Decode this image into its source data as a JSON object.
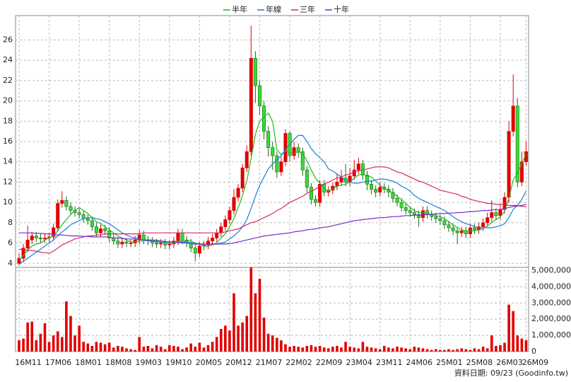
{
  "chart_data": [
    {
      "type": "candlestick",
      "open": [
        4.0,
        4.5,
        5.5,
        6.3,
        6.7,
        6.5,
        6.4,
        6.5,
        6.6,
        7.5,
        9.9,
        10.2,
        9.6,
        9.2,
        9.0,
        8.8,
        8.4,
        8.2,
        7.6,
        7.0,
        7.4,
        7.2,
        6.5,
        6.2,
        5.9,
        6.1,
        6.0,
        6.0,
        6.3,
        6.8,
        6.3,
        6.2,
        6.0,
        5.9,
        6.0,
        5.8,
        5.9,
        6.2,
        7.0,
        6.3,
        6.0,
        5.5,
        5.0,
        5.7,
        5.8,
        6.2,
        6.5,
        7.0,
        7.6,
        8.3,
        9.2,
        10.5,
        11.4,
        13.4,
        15.0,
        24.2,
        21.5,
        19.5,
        17.0,
        15.4,
        14.6,
        13.0,
        14.0,
        16.8,
        14.6,
        15.4,
        15.0,
        13.2,
        11.5,
        10.3,
        10.0,
        11.8,
        11.0,
        11.2,
        11.6,
        12.0,
        12.4,
        12.0,
        12.6,
        13.2,
        13.8,
        12.7,
        11.8,
        11.3,
        11.0,
        11.5,
        11.3,
        11.0,
        10.4,
        10.0,
        9.5,
        9.2,
        9.0,
        8.8,
        8.5,
        9.2,
        8.8,
        8.6,
        8.4,
        8.2,
        7.8,
        7.5,
        7.2,
        7.0,
        7.2,
        6.9,
        7.5,
        7.3,
        7.6,
        8.0,
        8.5,
        9.0,
        8.7,
        9.3,
        10.5,
        17.0,
        19.5,
        12.0,
        14.0
      ],
      "high": [
        5.0,
        5.9,
        7.7,
        7.1,
        7.1,
        6.9,
        6.9,
        7.0,
        7.9,
        10.3,
        11.1,
        10.6,
        10.0,
        9.6,
        9.4,
        9.2,
        8.8,
        8.6,
        8.0,
        7.8,
        7.8,
        7.6,
        6.9,
        6.6,
        6.5,
        6.5,
        6.4,
        6.7,
        7.3,
        7.2,
        6.7,
        6.6,
        6.4,
        6.4,
        6.4,
        6.3,
        6.6,
        7.4,
        7.4,
        6.7,
        6.4,
        5.9,
        6.1,
        6.2,
        6.6,
        6.9,
        7.4,
        8.0,
        8.7,
        9.6,
        11.3,
        11.8,
        13.8,
        15.6,
        27.4,
        24.9,
        22.0,
        20.0,
        17.5,
        16.0,
        15.0,
        14.5,
        17.2,
        17.0,
        16.0,
        15.8,
        15.4,
        13.6,
        11.9,
        10.7,
        12.2,
        12.2,
        11.6,
        12.0,
        12.8,
        13.2,
        13.8,
        13.4,
        14.2,
        14.4,
        14.2,
        13.1,
        12.2,
        11.7,
        12.0,
        11.9,
        11.7,
        11.4,
        10.8,
        10.4,
        9.9,
        9.6,
        9.4,
        9.2,
        9.6,
        9.6,
        9.2,
        9.0,
        8.8,
        8.6,
        8.2,
        7.9,
        7.6,
        7.6,
        7.6,
        7.9,
        7.9,
        8.0,
        8.4,
        9.0,
        10.2,
        9.4,
        9.8,
        11.0,
        18.0,
        22.6,
        20.3,
        15.0,
        16.0
      ],
      "low": [
        3.8,
        4.1,
        5.1,
        5.9,
        6.1,
        6.0,
        6.0,
        6.1,
        6.2,
        7.1,
        9.5,
        9.2,
        8.8,
        8.6,
        8.4,
        8.0,
        7.8,
        7.2,
        6.6,
        6.6,
        6.8,
        6.1,
        5.8,
        5.5,
        5.5,
        5.6,
        5.6,
        5.6,
        5.9,
        5.9,
        5.8,
        5.6,
        5.5,
        5.5,
        5.4,
        5.4,
        5.5,
        5.8,
        5.9,
        5.6,
        5.1,
        4.2,
        4.6,
        5.3,
        5.4,
        5.8,
        6.1,
        6.6,
        7.2,
        7.9,
        8.8,
        10.1,
        11.0,
        13.0,
        14.6,
        19.8,
        18.6,
        16.2,
        14.5,
        13.2,
        12.4,
        12.6,
        13.6,
        14.0,
        14.2,
        14.4,
        12.6,
        11.0,
        9.8,
        9.6,
        9.6,
        10.6,
        10.6,
        10.8,
        11.2,
        11.6,
        11.6,
        11.6,
        12.2,
        12.8,
        12.2,
        11.2,
        10.8,
        10.5,
        10.6,
        10.9,
        10.5,
        10.0,
        9.6,
        9.1,
        8.8,
        8.6,
        8.4,
        7.6,
        8.1,
        8.4,
        8.2,
        8.0,
        7.8,
        7.4,
        7.1,
        6.8,
        5.9,
        6.6,
        6.5,
        6.5,
        6.9,
        6.9,
        7.2,
        7.6,
        8.1,
        8.3,
        8.3,
        8.9,
        10.0,
        16.5,
        11.5,
        11.6,
        13.6
      ],
      "close": [
        4.5,
        5.5,
        6.3,
        6.7,
        6.5,
        6.4,
        6.5,
        6.6,
        7.5,
        9.9,
        10.2,
        9.6,
        9.2,
        9.0,
        8.8,
        8.4,
        8.2,
        7.6,
        7.0,
        7.4,
        7.2,
        6.5,
        6.2,
        5.9,
        6.1,
        6.0,
        6.0,
        6.3,
        6.8,
        6.3,
        6.2,
        6.0,
        5.9,
        6.0,
        5.8,
        5.9,
        6.2,
        7.0,
        6.3,
        6.0,
        5.5,
        5.0,
        5.7,
        5.8,
        6.2,
        6.5,
        7.0,
        7.6,
        8.3,
        9.2,
        10.5,
        11.4,
        13.4,
        15.0,
        24.2,
        21.5,
        19.5,
        17.0,
        15.4,
        14.6,
        13.0,
        14.0,
        16.8,
        14.6,
        15.4,
        15.0,
        13.2,
        11.5,
        10.3,
        10.0,
        11.8,
        11.0,
        11.2,
        11.6,
        12.0,
        12.4,
        12.0,
        12.6,
        13.2,
        13.8,
        12.7,
        11.8,
        11.3,
        11.0,
        11.5,
        11.3,
        11.0,
        10.4,
        10.0,
        9.5,
        9.2,
        9.0,
        8.8,
        8.5,
        9.2,
        8.8,
        8.6,
        8.4,
        8.2,
        7.8,
        7.5,
        7.2,
        7.0,
        7.2,
        6.9,
        7.5,
        7.3,
        7.6,
        8.0,
        8.5,
        9.0,
        8.7,
        9.3,
        10.5,
        17.0,
        19.5,
        12.0,
        14.0,
        15.0
      ],
      "up_color": "#e00000",
      "down_color": "#33dd33",
      "series": [
        {
          "name": "半年",
          "color": "#22bb22",
          "values": [
            4.3,
            4.8,
            5.3,
            5.7,
            5.9,
            6.0,
            6.3,
            6.5,
            6.7,
            7.2,
            7.8,
            8.3,
            8.8,
            9.2,
            9.5,
            9.2,
            8.9,
            8.5,
            8.1,
            7.9,
            7.6,
            7.3,
            7.0,
            6.7,
            6.5,
            6.3,
            6.1,
            6.1,
            6.2,
            6.2,
            6.3,
            6.3,
            6.3,
            6.2,
            6.0,
            6.0,
            6.0,
            6.2,
            6.2,
            6.2,
            6.2,
            6.0,
            5.9,
            5.7,
            5.7,
            5.8,
            6.0,
            6.5,
            6.9,
            7.6,
            8.4,
            9.5,
            10.7,
            12.1,
            14.3,
            16.7,
            18.0,
            18.4,
            18.8,
            18.0,
            15.2,
            14.7,
            15.1,
            14.9,
            14.8,
            15.0,
            14.8,
            14.1,
            13.2,
            12.4,
            11.9,
            11.4,
            11.1,
            11.3,
            11.6,
            11.7,
            11.8,
            12.0,
            12.4,
            12.7,
            12.8,
            12.6,
            12.5,
            12.1,
            11.7,
            11.4,
            11.2,
            10.9,
            10.6,
            10.3,
            9.9,
            9.5,
            9.2,
            9.0,
            9.0,
            8.9,
            8.8,
            8.7,
            8.6,
            8.4,
            8.1,
            7.8,
            7.5,
            7.3,
            7.2,
            7.2,
            7.2,
            7.3,
            7.4,
            7.7,
            8.0,
            8.3,
            8.6,
            9.1,
            10.4,
            12.2,
            12.9,
            13.8,
            14.8
          ]
        },
        {
          "name": "年線",
          "color": "#1f7fd6",
          "values": [
            3.9,
            4.2,
            4.5,
            4.8,
            5.1,
            5.4,
            5.7,
            6.0,
            6.3,
            6.7,
            7.1,
            7.4,
            7.8,
            8.0,
            8.2,
            8.4,
            8.5,
            8.5,
            8.4,
            8.3,
            8.1,
            7.9,
            7.6,
            7.3,
            7.0,
            6.8,
            6.6,
            6.5,
            6.4,
            6.3,
            6.2,
            6.2,
            6.1,
            6.1,
            6.1,
            6.1,
            6.1,
            6.1,
            6.1,
            6.1,
            6.0,
            6.0,
            5.9,
            5.9,
            5.9,
            5.9,
            5.9,
            6.0,
            6.1,
            6.4,
            6.7,
            7.1,
            7.6,
            8.3,
            9.4,
            10.6,
            11.7,
            12.5,
            13.3,
            13.8,
            14.2,
            14.6,
            15.2,
            15.7,
            16.2,
            16.6,
            16.6,
            16.0,
            15.3,
            14.8,
            14.4,
            14.0,
            13.3,
            13.1,
            12.8,
            12.5,
            12.2,
            12.0,
            11.9,
            11.9,
            12.0,
            12.1,
            12.1,
            12.2,
            12.3,
            12.3,
            12.2,
            12.1,
            11.9,
            11.6,
            11.4,
            11.1,
            10.7,
            10.4,
            10.2,
            10.0,
            9.8,
            9.6,
            9.4,
            9.2,
            8.9,
            8.6,
            8.3,
            8.1,
            7.9,
            7.8,
            7.6,
            7.5,
            7.5,
            7.5,
            7.5,
            7.6,
            7.7,
            7.9,
            8.5,
            9.3,
            9.7,
            10.3,
            11.1
          ]
        },
        {
          "name": "三年",
          "color": "#d42a6e",
          "values": [
            5.4,
            5.35,
            5.3,
            5.25,
            5.2,
            5.1,
            5.05,
            5.0,
            5.2,
            5.5,
            5.8,
            6.0,
            6.2,
            6.4,
            6.5,
            6.6,
            6.7,
            6.7,
            6.8,
            6.8,
            6.9,
            6.9,
            6.9,
            6.9,
            6.9,
            6.9,
            6.9,
            6.9,
            6.9,
            7.0,
            7.0,
            7.0,
            7.0,
            7.0,
            7.0,
            7.0,
            7.0,
            7.0,
            7.0,
            7.0,
            7.0,
            7.0,
            7.0,
            7.0,
            7.0,
            7.0,
            7.0,
            7.0,
            7.1,
            7.2,
            7.3,
            7.4,
            7.6,
            7.8,
            8.0,
            8.1,
            8.3,
            8.5,
            8.7,
            8.9,
            9.2,
            9.4,
            9.7,
            10.0,
            10.2,
            10.4,
            10.6,
            10.9,
            11.1,
            11.3,
            11.6,
            11.8,
            12.0,
            12.2,
            12.4,
            12.5,
            12.7,
            12.8,
            13.0,
            13.1,
            13.2,
            13.3,
            13.4,
            13.5,
            13.5,
            13.5,
            13.4,
            13.2,
            13.0,
            12.9,
            12.7,
            12.5,
            12.3,
            12.1,
            12.0,
            11.8,
            11.6,
            11.4,
            11.2,
            11.1,
            11.0,
            10.9,
            10.8,
            10.6,
            10.5,
            10.3,
            10.2,
            10.1,
            10.0,
            9.9,
            9.9,
            9.8,
            9.8,
            9.8,
            9.7,
            9.7,
            9.7,
            9.6,
            9.6
          ]
        },
        {
          "name": "十年",
          "color": "#7a2ccc",
          "values": [
            7.0,
            7.0,
            7.0,
            7.0,
            6.95,
            6.95,
            6.9,
            6.9,
            6.85,
            6.8,
            6.8,
            6.75,
            6.7,
            6.7,
            6.7,
            6.65,
            6.65,
            6.6,
            6.6,
            6.6,
            6.6,
            6.55,
            6.5,
            6.5,
            6.45,
            6.4,
            6.4,
            6.4,
            6.35,
            6.3,
            6.3,
            6.25,
            6.2,
            6.2,
            6.15,
            6.1,
            6.1,
            6.05,
            6.0,
            6.0,
            5.95,
            5.9,
            5.9,
            5.9,
            5.9,
            5.9,
            5.9,
            5.9,
            5.9,
            5.95,
            6.0,
            6.1,
            6.2,
            6.3,
            6.4,
            6.5,
            6.6,
            6.7,
            6.75,
            6.8,
            6.85,
            6.9,
            6.95,
            7.0,
            7.1,
            7.15,
            7.2,
            7.3,
            7.35,
            7.4,
            7.5,
            7.55,
            7.6,
            7.7,
            7.8,
            7.9,
            8.0,
            8.1,
            8.2,
            8.25,
            8.3,
            8.35,
            8.4,
            8.45,
            8.5,
            8.5,
            8.55,
            8.6,
            8.6,
            8.65,
            8.7,
            8.7,
            8.75,
            8.75,
            8.8,
            8.8,
            8.85,
            8.85,
            8.9,
            8.9,
            8.95,
            8.95,
            9.0,
            9.0,
            9.05,
            9.1,
            9.1,
            9.15,
            9.2,
            9.2,
            9.25,
            9.3,
            9.3,
            9.4,
            9.5,
            9.6,
            9.65,
            9.7,
            9.8
          ]
        }
      ],
      "ylim": [
        3.6,
        28.4
      ],
      "yticks": [
        4,
        6,
        8,
        10,
        12,
        14,
        16,
        18,
        20,
        22,
        24,
        26
      ],
      "grid": true
    },
    {
      "type": "bar",
      "categories": [
        "16M11",
        null,
        null,
        null,
        null,
        null,
        null,
        "17M06",
        null,
        null,
        null,
        null,
        null,
        null,
        "18M01",
        null,
        null,
        null,
        null,
        null,
        null,
        "18M08",
        null,
        null,
        null,
        null,
        null,
        null,
        "19M03",
        null,
        null,
        null,
        null,
        null,
        null,
        "19M10",
        null,
        null,
        null,
        null,
        null,
        null,
        "20M05",
        null,
        null,
        null,
        null,
        null,
        null,
        "20M12",
        null,
        null,
        null,
        null,
        null,
        null,
        "21M07",
        null,
        null,
        null,
        null,
        null,
        null,
        "22M02",
        null,
        null,
        null,
        null,
        null,
        null,
        "22M09",
        null,
        null,
        null,
        null,
        null,
        null,
        "23M04",
        null,
        null,
        null,
        null,
        null,
        null,
        "23M11",
        null,
        null,
        null,
        null,
        null,
        null,
        "24M06",
        null,
        null,
        null,
        null,
        null,
        null,
        "25M01",
        null,
        null,
        null,
        null,
        null,
        null,
        "25M08",
        null,
        null,
        null,
        null,
        null,
        null,
        "26M03",
        null,
        null,
        null,
        null,
        null,
        "26M09"
      ],
      "values": [
        700000,
        800000,
        1800000,
        1850000,
        700000,
        1100000,
        1750000,
        600000,
        1000000,
        1250000,
        900000,
        3100000,
        2200000,
        1000000,
        1600000,
        600000,
        500000,
        350000,
        600000,
        550000,
        450000,
        550000,
        250000,
        350000,
        300000,
        200000,
        150000,
        100000,
        900000,
        300000,
        350000,
        200000,
        400000,
        300000,
        150000,
        400000,
        350000,
        300000,
        150000,
        250000,
        500000,
        300000,
        550000,
        250000,
        400000,
        600000,
        900000,
        1400000,
        1600000,
        1300000,
        3600000,
        1600000,
        1800000,
        2200000,
        5200000,
        3600000,
        4500000,
        2100000,
        1100000,
        1000000,
        850000,
        700000,
        450000,
        300000,
        350000,
        300000,
        250000,
        350000,
        400000,
        300000,
        350000,
        250000,
        200000,
        300000,
        350000,
        250000,
        600000,
        300000,
        250000,
        200000,
        600000,
        300000,
        250000,
        200000,
        150000,
        350000,
        250000,
        200000,
        300000,
        250000,
        200000,
        150000,
        300000,
        250000,
        200000,
        150000,
        100000,
        150000,
        100000,
        100000,
        150000,
        100000,
        150000,
        200000,
        150000,
        100000,
        200000,
        150000,
        300000,
        200000,
        1000000,
        350000,
        400000,
        550000,
        2900000,
        2500000,
        1000000,
        800000,
        700000
      ],
      "color": "#e00000",
      "ylim": [
        0,
        5200000
      ],
      "yticks": [
        0,
        {
          "value": 1000000,
          "label": "1,000,000"
        },
        {
          "value": 2000000,
          "label": "2,000,000"
        },
        {
          "value": 3000000,
          "label": "3,000,000"
        },
        {
          "value": 4000000,
          "label": "4,000,000"
        },
        {
          "value": 5000000,
          "label": "5,000,000"
        }
      ],
      "grid": true
    }
  ],
  "footer": "資料日期: 09/23 (Goodinfo.tw)"
}
